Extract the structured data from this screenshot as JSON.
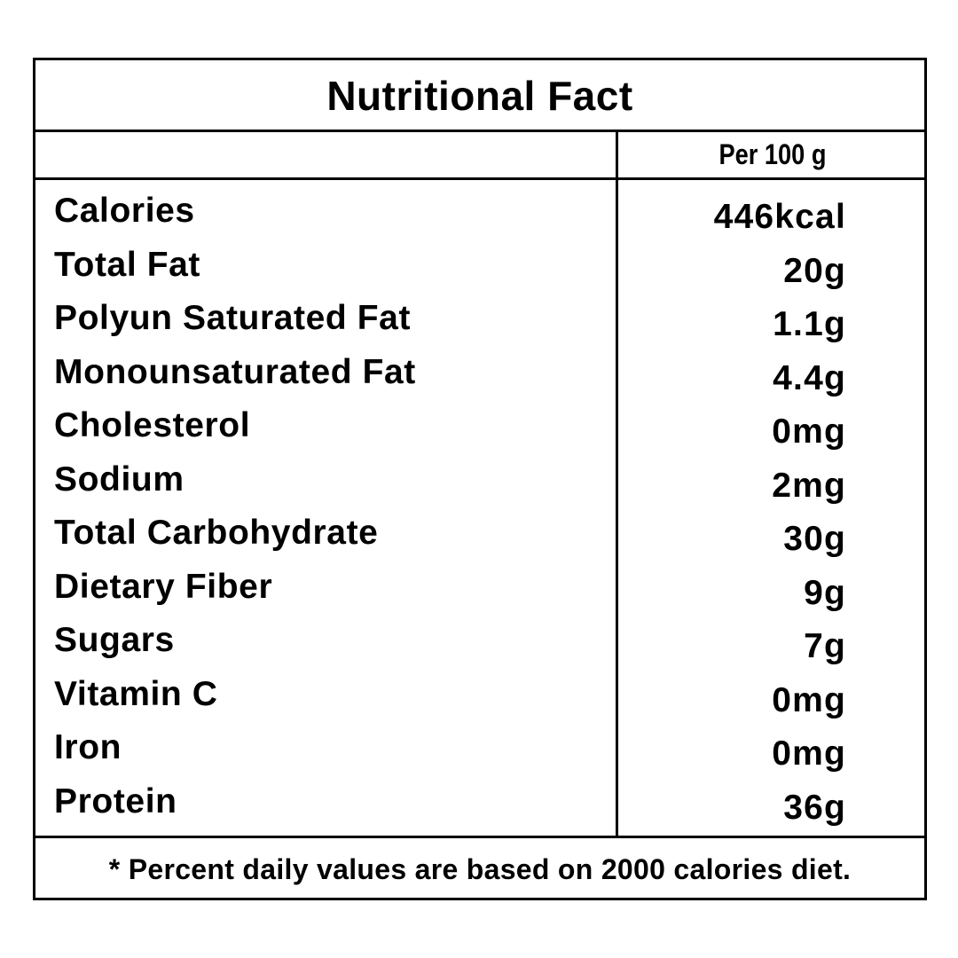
{
  "title": "Nutritional Fact",
  "column_header": "Per 100 g",
  "rows": [
    {
      "label": "Calories",
      "value": "446kcal"
    },
    {
      "label": "Total Fat",
      "value": "20g"
    },
    {
      "label": "Polyun Saturated Fat",
      "value": "1.1g"
    },
    {
      "label": "Monounsaturated Fat",
      "value": "4.4g"
    },
    {
      "label": "Cholesterol",
      "value": "0mg"
    },
    {
      "label": "Sodium",
      "value": "2mg"
    },
    {
      "label": "Total Carbohydrate",
      "value": "30g"
    },
    {
      "label": "Dietary Fiber",
      "value": "9g"
    },
    {
      "label": "Sugars",
      "value": "7g"
    },
    {
      "label": "Vitamin C",
      "value": "0mg"
    },
    {
      "label": "Iron",
      "value": "0mg"
    },
    {
      "label": "Protein",
      "value": "36g"
    }
  ],
  "footnote": "*  Percent daily values are based on 2000 calories diet."
}
